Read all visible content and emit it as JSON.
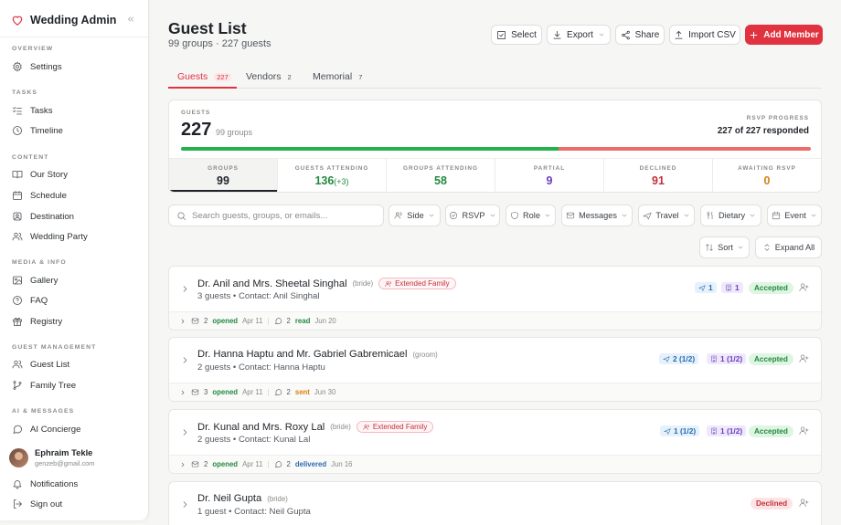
{
  "sidebar": {
    "brand": "Wedding Admin",
    "sections": {
      "overview": "OVERVIEW",
      "tasks": "TASKS",
      "content": "CONTENT",
      "media": "MEDIA & INFO",
      "guest": "GUEST MANAGEMENT",
      "ai": "AI & MESSAGES"
    },
    "items": {
      "settings": "Settings",
      "tasks": "Tasks",
      "timeline": "Timeline",
      "our_story": "Our Story",
      "schedule": "Schedule",
      "destination": "Destination",
      "wedding_party": "Wedding Party",
      "gallery": "Gallery",
      "faq": "FAQ",
      "registry": "Registry",
      "guest_list": "Guest List",
      "family_tree": "Family Tree",
      "ai_concierge": "AI Concierge"
    },
    "user": {
      "name": "Ephraim Tekle",
      "email": "genzeb@gmail.com"
    },
    "notifications": "Notifications",
    "sign_out": "Sign out"
  },
  "header": {
    "title": "Guest List",
    "subtitle": "99 groups · 227 guests",
    "buttons": {
      "select": "Select",
      "export": "Export",
      "share": "Share",
      "import": "Import CSV",
      "add": "Add Member"
    }
  },
  "tabs": [
    {
      "label": "Guests",
      "count": "227"
    },
    {
      "label": "Vendors",
      "count": "2"
    },
    {
      "label": "Memorial",
      "count": "7"
    }
  ],
  "summary": {
    "guests_label": "GUESTS",
    "guests_value": "227",
    "groups_text": "99 groups",
    "rsvp_label": "RSVP PROGRESS",
    "rsvp_text": "227 of 227 responded",
    "progress": {
      "accepted_fraction": 0.6,
      "declined_fraction": 0.4,
      "accepted_color": "#22b14c",
      "declined_color": "#ec6b6b"
    },
    "stats": [
      {
        "label": "GROUPS",
        "value": "99",
        "color": "#1f2328"
      },
      {
        "label": "GUESTS ATTENDING",
        "value": "136",
        "extra": "(+3)",
        "color": "#238a3e"
      },
      {
        "label": "GROUPS ATTENDING",
        "value": "58",
        "color": "#238a3e"
      },
      {
        "label": "PARTIAL",
        "value": "9",
        "color": "#6a3fc1"
      },
      {
        "label": "DECLINED",
        "value": "91",
        "color": "#c4303a"
      },
      {
        "label": "AWAITING RSVP",
        "value": "0",
        "color": "#d97f12"
      }
    ]
  },
  "filters": {
    "search_placeholder": "Search guests, groups, or emails...",
    "side": "Side",
    "rsvp": "RSVP",
    "role": "Role",
    "messages": "Messages",
    "travel": "Travel",
    "dietary": "Dietary",
    "event": "Event",
    "sort": "Sort",
    "expand": "Expand All"
  },
  "groups": [
    {
      "name": "Dr. Anil and Mrs. Sheetal Singhal",
      "role": "(bride)",
      "tag": "Extended Family",
      "sub": "3 guests  •  Contact: Anil Singhal",
      "travel": "1",
      "hotel": "1",
      "status": "Accepted",
      "emails": "2",
      "email_state": "opened",
      "email_date": "Apr 11",
      "msgs": "2",
      "msg_state": "read",
      "msg_date": "Jun 20"
    },
    {
      "name": "Dr. Hanna Haptu and Mr. Gabriel Gabremicael",
      "role": "(groom)",
      "tag": "",
      "sub": "2 guests  •  Contact: Hanna Haptu",
      "travel": "2 (1/2)",
      "hotel": "1 (1/2)",
      "status": "Accepted",
      "emails": "3",
      "email_state": "opened",
      "email_date": "Apr 11",
      "msgs": "2",
      "msg_state": "sent",
      "msg_date": "Jun 30"
    },
    {
      "name": "Dr. Kunal and Mrs. Roxy Lal",
      "role": "(bride)",
      "tag": "Extended Family",
      "sub": "2 guests  •  Contact: Kunal Lal",
      "travel": "1 (1/2)",
      "hotel": "1 (1/2)",
      "status": "Accepted",
      "emails": "2",
      "email_state": "opened",
      "email_date": "Apr 11",
      "msgs": "2",
      "msg_state": "delivered",
      "msg_date": "Jun 16"
    },
    {
      "name": "Dr. Neil Gupta",
      "role": "(bride)",
      "tag": "",
      "sub": "1 guest  •  Contact: Neil Gupta",
      "status": "Declined"
    }
  ]
}
